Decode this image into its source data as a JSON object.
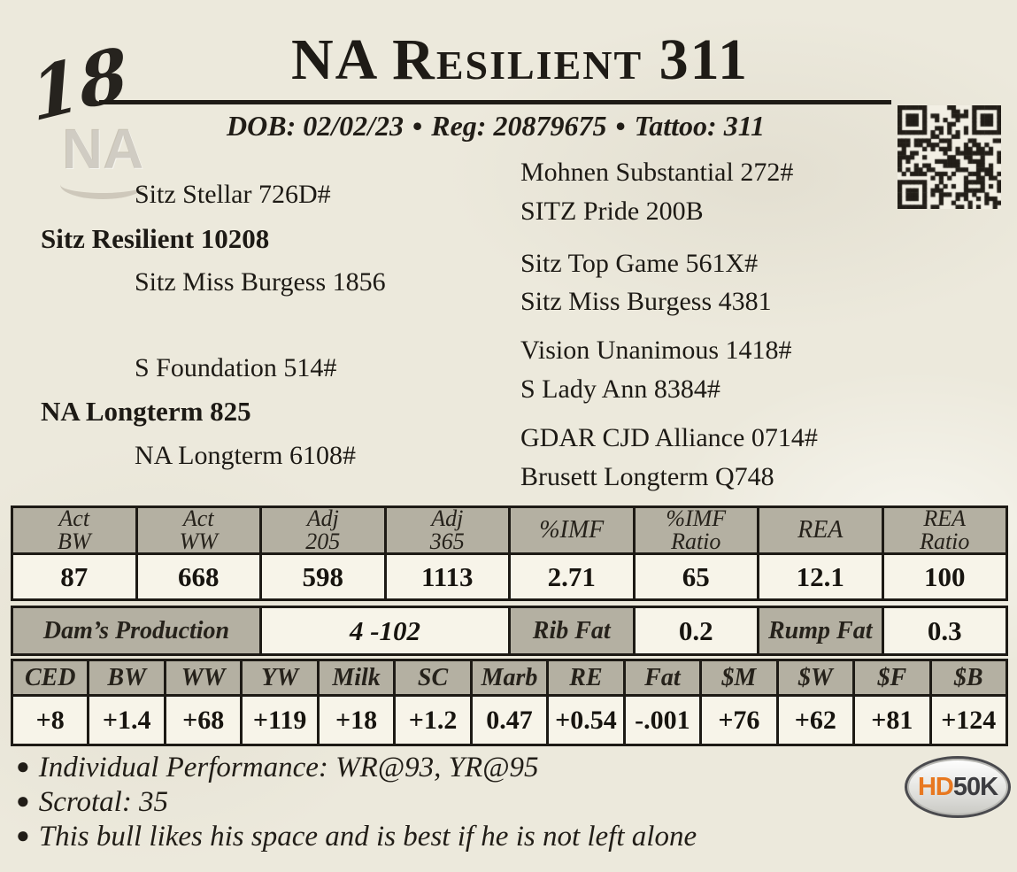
{
  "lot_number": "18",
  "title": "NA Resilient 311",
  "watermark_text": "NA",
  "info_line": {
    "parts": [
      "DOB: 02/02/23",
      "Reg: 20879675",
      "Tattoo: 311"
    ],
    "separator": "•"
  },
  "pedigree": {
    "sire": {
      "name": "Sitz Resilient 10208",
      "sire": "Sitz Stellar 726D#",
      "dam": "Sitz Miss Burgess 1856",
      "sire_parents": [
        "Mohnen Substantial 272#",
        "SITZ Pride 200B"
      ],
      "dam_parents": [
        "Sitz Top Game 561X#",
        "Sitz Miss Burgess 4381"
      ]
    },
    "dam": {
      "name": "NA Longterm 825",
      "sire": "S Foundation 514#",
      "dam": "NA Longterm 6108#",
      "sire_parents": [
        "Vision Unanimous 1418#",
        "S Lady Ann 8384#"
      ],
      "dam_parents": [
        "GDAR CJD Alliance 0714#",
        "Brusett Longterm Q748"
      ]
    }
  },
  "performance_table": {
    "headers": [
      {
        "l1": "Act",
        "l2": "BW"
      },
      {
        "l1": "Act",
        "l2": "WW"
      },
      {
        "l1": "Adj",
        "l2": "205"
      },
      {
        "l1": "Adj",
        "l2": "365"
      },
      {
        "l1": "%IMF",
        "l2": ""
      },
      {
        "l1": "%IMF",
        "l2": "Ratio"
      },
      {
        "l1": "REA",
        "l2": ""
      },
      {
        "l1": "REA",
        "l2": "Ratio"
      }
    ],
    "values": [
      "87",
      "668",
      "598",
      "1113",
      "2.71",
      "65",
      "12.1",
      "100"
    ]
  },
  "dam_production_row": {
    "label": "Dam’s Production",
    "value": "4 -102",
    "rib_fat_label": "Rib Fat",
    "rib_fat_value": "0.2",
    "rump_fat_label": "Rump Fat",
    "rump_fat_value": "0.3"
  },
  "epd_table": {
    "headers": [
      "CED",
      "BW",
      "WW",
      "YW",
      "Milk",
      "SC",
      "Marb",
      "RE",
      "Fat",
      "$M",
      "$W",
      "$F",
      "$B"
    ],
    "values": [
      "+8",
      "+1.4",
      "+68",
      "+119",
      "+18",
      "+1.2",
      "0.47",
      "+0.54",
      "-.001",
      "+76",
      "+62",
      "+81",
      "+124"
    ]
  },
  "notes": {
    "bullet_char": "●",
    "lines": [
      "Individual Performance: WR@93, YR@95",
      "Scrotal: 35",
      "This bull likes his space and is best if he is not left alone"
    ]
  },
  "hd50k_badge": {
    "hd": "HD",
    "fiftyk": "50K"
  },
  "colors": {
    "paper": "#ece9dc",
    "table_header_bg": "#b4b0a2",
    "table_cell_bg": "#f7f4e9",
    "ink": "#1d1a15",
    "badge_orange": "#e87820",
    "badge_gray": "#3c3c40"
  }
}
